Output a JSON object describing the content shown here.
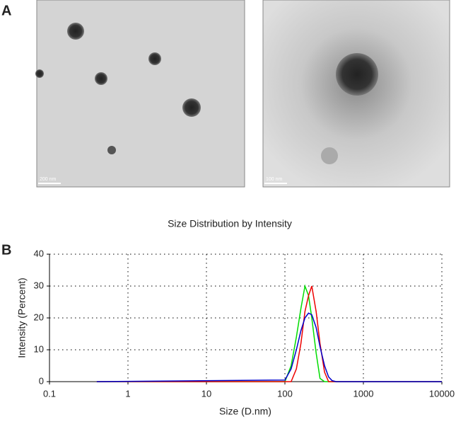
{
  "panel_labels": [
    "A",
    "B"
  ],
  "scale_bars": [
    "200 nm",
    "100 nm"
  ],
  "chart_data": {
    "type": "line",
    "title": "Size Distribution by Intensity",
    "xlabel": "Size (D.nm)",
    "ylabel": "Intensity (Percent)",
    "xlog": true,
    "grid": true,
    "x": [
      0.4,
      100,
      120,
      140,
      160,
      180,
      200,
      220,
      250,
      280,
      320,
      360,
      400,
      450,
      10000
    ],
    "series": [
      {
        "color": "#00dd00",
        "values": [
          0,
          0,
          5,
          14,
          23,
          30,
          27,
          20,
          9,
          1,
          0,
          0,
          0,
          0,
          0
        ]
      },
      {
        "color": "#ee0000",
        "values": [
          0,
          0,
          0,
          4,
          12,
          22,
          27,
          30,
          22,
          12,
          3,
          0,
          0,
          0,
          0
        ]
      },
      {
        "color": "#0000cc",
        "values": [
          0,
          0.5,
          4,
          10,
          16,
          20,
          21.5,
          21,
          17,
          11,
          5,
          1.5,
          0.3,
          0,
          0
        ]
      }
    ],
    "xlim": [
      0.1,
      10000
    ],
    "xticks": [
      0.1,
      1,
      10,
      100,
      1000,
      10000
    ],
    "ylim": [
      0,
      40
    ],
    "yticks": [
      0,
      10,
      20,
      30,
      40
    ]
  }
}
